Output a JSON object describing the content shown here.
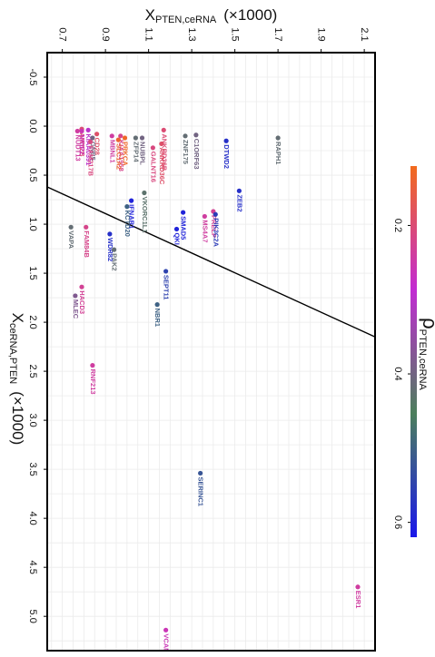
{
  "chart_data": {
    "type": "scatter",
    "x_axis_label": "X",
    "x_axis_label_sub": "PTEN,ceRNA",
    "x_axis_label_suffix": "(×1000)",
    "y_axis_label": "X",
    "y_axis_label_sub": "ceRNA,PTEN",
    "y_axis_label_suffix": "(×1000)",
    "xlim": [
      0.63,
      2.15
    ],
    "ylim": [
      -0.75,
      5.35
    ],
    "x_ticks": [
      0.7,
      0.9,
      1.1,
      1.3,
      1.5,
      1.7,
      1.9,
      2.1
    ],
    "x_tick_labels": [
      "0.7",
      "0.9",
      "1.1",
      "1.3",
      "1.5",
      "1.7",
      "1.9",
      "2.1"
    ],
    "y_ticks": [
      -0.5,
      0.0,
      0.5,
      1.0,
      1.5,
      2.0,
      2.5,
      3.0,
      3.5,
      4.0,
      4.5,
      5.0
    ],
    "y_tick_labels": [
      "-0.5",
      "0.0",
      "0.5",
      "1.0",
      "1.5",
      "2.0",
      "2.5",
      "3.0",
      "3.5",
      "4.0",
      "4.5",
      "5.0"
    ],
    "grid": true,
    "reference_line": {
      "x1": 0.63,
      "y1": 0.62,
      "x2": 2.15,
      "y2": 2.15
    },
    "colorbar": {
      "label": "ρ",
      "label_sub": "PTEN,ceRNA",
      "vmin": 0.12,
      "vmax": 0.62,
      "ticks": [
        0.2,
        0.4,
        0.6
      ],
      "tick_labels": [
        "0.2",
        "0.4",
        "0.6"
      ],
      "stops": [
        "#f26b1d",
        "#c22bd3",
        "#4c7f5c",
        "#1a17ea"
      ]
    },
    "points": [
      {
        "label": "ANKRD36B",
        "x": 1.17,
        "y": 0.04,
        "rho": 0.2
      },
      {
        "label": "NUBPL",
        "x": 1.07,
        "y": 0.12,
        "rho": 0.4
      },
      {
        "label": "ZFP14",
        "x": 1.04,
        "y": 0.12,
        "rho": 0.42
      },
      {
        "label": "KIAA1958",
        "x": 0.97,
        "y": 0.1,
        "rho": 0.22
      },
      {
        "label": "KIAA0391",
        "x": 0.82,
        "y": 0.04,
        "rho": 0.3
      },
      {
        "label": "AMY2B",
        "x": 0.79,
        "y": 0.03,
        "rho": 0.2
      },
      {
        "label": "NUDT13",
        "x": 0.77,
        "y": 0.05,
        "rho": 0.24
      },
      {
        "label": "NRIP2",
        "x": 0.79,
        "y": 0.05,
        "rho": 0.26
      },
      {
        "label": "CD28",
        "x": 0.86,
        "y": 0.08,
        "rho": 0.19
      },
      {
        "label": "GNB5",
        "x": 0.84,
        "y": 0.12,
        "rho": 0.4
      },
      {
        "label": "FAM217B",
        "x": 0.83,
        "y": 0.16,
        "rho": 0.21
      },
      {
        "label": "MBNL1",
        "x": 0.93,
        "y": 0.1,
        "rho": 0.24
      },
      {
        "label": "PRKCA",
        "x": 0.99,
        "y": 0.12,
        "rho": 0.13
      },
      {
        "label": "SLC1A2",
        "x": 0.96,
        "y": 0.14,
        "rho": 0.14
      },
      {
        "label": "ANKRD36C",
        "x": 1.16,
        "y": 0.18,
        "rho": 0.19
      },
      {
        "label": "GALNT16",
        "x": 1.12,
        "y": 0.22,
        "rho": 0.21
      },
      {
        "label": "ZNF175",
        "x": 1.27,
        "y": 0.1,
        "rho": 0.42
      },
      {
        "label": "C1ORF63",
        "x": 1.32,
        "y": 0.09,
        "rho": 0.4
      },
      {
        "label": "DTWD2",
        "x": 1.46,
        "y": 0.15,
        "rho": 0.58
      },
      {
        "label": "RAPH1",
        "x": 1.7,
        "y": 0.12,
        "rho": 0.42
      },
      {
        "label": "ZEB2",
        "x": 1.52,
        "y": 0.66,
        "rho": 0.58
      },
      {
        "label": "PRELP",
        "x": 1.4,
        "y": 0.87,
        "rho": 0.23
      },
      {
        "label": "PIK3C2A",
        "x": 1.41,
        "y": 0.9,
        "rho": 0.56
      },
      {
        "label": "MS4A7",
        "x": 1.36,
        "y": 0.92,
        "rho": 0.24
      },
      {
        "label": "SMAD5",
        "x": 1.26,
        "y": 0.88,
        "rho": 0.6
      },
      {
        "label": "QKI",
        "x": 1.23,
        "y": 1.05,
        "rho": 0.6
      },
      {
        "label": "VKORC1L1",
        "x": 1.08,
        "y": 0.68,
        "rho": 0.43
      },
      {
        "label": "IFNAR1",
        "x": 1.02,
        "y": 0.76,
        "rho": 0.6
      },
      {
        "label": "KCTD20",
        "x": 1.0,
        "y": 0.82,
        "rho": 0.5
      },
      {
        "label": "WDR82",
        "x": 0.92,
        "y": 1.1,
        "rho": 0.58
      },
      {
        "label": "PAK2",
        "x": 0.94,
        "y": 1.26,
        "rho": 0.42
      },
      {
        "label": "FAM84B",
        "x": 0.81,
        "y": 1.03,
        "rho": 0.22
      },
      {
        "label": "VAPA",
        "x": 0.74,
        "y": 1.03,
        "rho": 0.42
      },
      {
        "label": "SEPT11",
        "x": 1.18,
        "y": 1.48,
        "rho": 0.55
      },
      {
        "label": "NBR1",
        "x": 1.14,
        "y": 1.82,
        "rho": 0.5
      },
      {
        "label": "HACD3",
        "x": 0.79,
        "y": 1.64,
        "rho": 0.23
      },
      {
        "label": "MLEC",
        "x": 0.76,
        "y": 1.73,
        "rho": 0.38
      },
      {
        "label": "RNF213",
        "x": 0.84,
        "y": 2.44,
        "rho": 0.24
      },
      {
        "label": "SERINC1",
        "x": 1.34,
        "y": 3.54,
        "rho": 0.52
      },
      {
        "label": "ESR1",
        "x": 2.07,
        "y": 4.7,
        "rho": 0.24
      },
      {
        "label": "VCAN",
        "x": 1.18,
        "y": 5.14,
        "rho": 0.26
      }
    ]
  }
}
